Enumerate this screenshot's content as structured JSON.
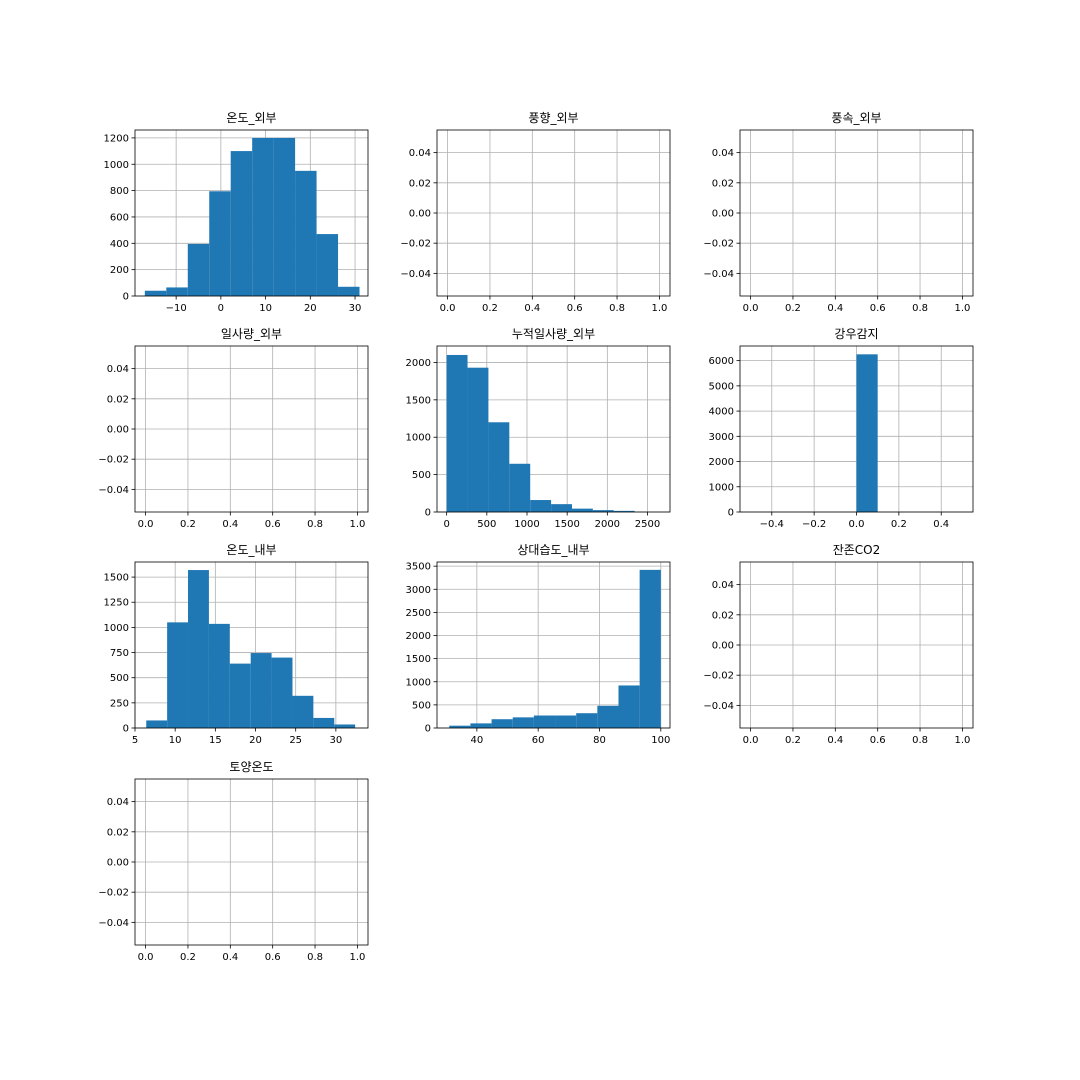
{
  "colors": {
    "bar": "#1f77b4",
    "grid": "#b0b0b0",
    "axes": "#000000",
    "background": "#ffffff"
  },
  "chart_data": [
    {
      "type": "bar",
      "title": "온도_외부",
      "grid": true,
      "xlim": [
        -19.2,
        32.9
      ],
      "ylim": [
        0,
        1260
      ],
      "bins": [
        [
          -17.0,
          -12.2,
          40
        ],
        [
          -12.2,
          -7.4,
          65
        ],
        [
          -7.4,
          -2.6,
          395
        ],
        [
          -2.6,
          2.2,
          795
        ],
        [
          2.2,
          7.0,
          1100
        ],
        [
          7.0,
          11.8,
          1200
        ],
        [
          11.8,
          16.6,
          1200
        ],
        [
          16.6,
          21.4,
          950
        ],
        [
          21.4,
          26.2,
          470
        ],
        [
          26.2,
          31.0,
          70
        ]
      ],
      "xticks": [
        -10,
        0,
        10,
        20,
        30
      ],
      "xtick_labels": [
        "−10",
        "0",
        "10",
        "20",
        "30"
      ],
      "yticks": [
        0,
        200,
        400,
        600,
        800,
        1000,
        1200
      ],
      "ytick_labels": [
        "0",
        "200",
        "400",
        "600",
        "800",
        "1000",
        "1200"
      ]
    },
    {
      "type": "bar",
      "title": "풍향_외부",
      "grid": true,
      "xlim": [
        -0.05,
        1.05
      ],
      "ylim": [
        -0.055,
        0.055
      ],
      "bins": [],
      "xticks": [
        0,
        0.2,
        0.4,
        0.6,
        0.8,
        1.0
      ],
      "xtick_labels": [
        "0.0",
        "0.2",
        "0.4",
        "0.6",
        "0.8",
        "1.0"
      ],
      "yticks": [
        -0.04,
        -0.02,
        0,
        0.02,
        0.04
      ],
      "ytick_labels": [
        "−0.04",
        "−0.02",
        "0.00",
        "0.02",
        "0.04"
      ]
    },
    {
      "type": "bar",
      "title": "풍속_외부",
      "grid": true,
      "xlim": [
        -0.05,
        1.05
      ],
      "ylim": [
        -0.055,
        0.055
      ],
      "bins": [],
      "xticks": [
        0,
        0.2,
        0.4,
        0.6,
        0.8,
        1.0
      ],
      "xtick_labels": [
        "0.0",
        "0.2",
        "0.4",
        "0.6",
        "0.8",
        "1.0"
      ],
      "yticks": [
        -0.04,
        -0.02,
        0,
        0.02,
        0.04
      ],
      "ytick_labels": [
        "−0.04",
        "−0.02",
        "0.00",
        "0.02",
        "0.04"
      ]
    },
    {
      "type": "bar",
      "title": "일사량_외부",
      "grid": true,
      "xlim": [
        -0.05,
        1.05
      ],
      "ylim": [
        -0.055,
        0.055
      ],
      "bins": [],
      "xticks": [
        0,
        0.2,
        0.4,
        0.6,
        0.8,
        1.0
      ],
      "xtick_labels": [
        "0.0",
        "0.2",
        "0.4",
        "0.6",
        "0.8",
        "1.0"
      ],
      "yticks": [
        -0.04,
        -0.02,
        0,
        0.02,
        0.04
      ],
      "ytick_labels": [
        "−0.04",
        "−0.02",
        "0.00",
        "0.02",
        "0.04"
      ]
    },
    {
      "type": "bar",
      "title": "누적일사량_외부",
      "grid": true,
      "xlim": [
        -120,
        2780
      ],
      "ylim": [
        0,
        2220
      ],
      "bins": [
        [
          0,
          260,
          2100
        ],
        [
          260,
          520,
          1930
        ],
        [
          520,
          780,
          1200
        ],
        [
          780,
          1040,
          645
        ],
        [
          1040,
          1300,
          160
        ],
        [
          1300,
          1560,
          105
        ],
        [
          1560,
          1820,
          45
        ],
        [
          1820,
          2080,
          25
        ],
        [
          2080,
          2340,
          15
        ],
        [
          2340,
          2600,
          0
        ]
      ],
      "xticks": [
        0,
        500,
        1000,
        1500,
        2000,
        2500
      ],
      "xtick_labels": [
        "0",
        "500",
        "1000",
        "1500",
        "2000",
        "2500"
      ],
      "yticks": [
        0,
        500,
        1000,
        1500,
        2000
      ],
      "ytick_labels": [
        "0",
        "500",
        "1000",
        "1500",
        "2000"
      ]
    },
    {
      "type": "bar",
      "title": "강우감지",
      "grid": true,
      "xlim": [
        -0.55,
        0.55
      ],
      "ylim": [
        0,
        6580
      ],
      "bins": [
        [
          0.0,
          0.1,
          6250
        ]
      ],
      "xticks": [
        -0.4,
        -0.2,
        0,
        0.2,
        0.4
      ],
      "xtick_labels": [
        "−0.4",
        "−0.2",
        "0.0",
        "0.2",
        "0.4"
      ],
      "yticks": [
        0,
        1000,
        2000,
        3000,
        4000,
        5000,
        6000
      ],
      "ytick_labels": [
        "0",
        "1000",
        "2000",
        "3000",
        "4000",
        "5000",
        "6000"
      ]
    },
    {
      "type": "bar",
      "title": "온도_내부",
      "grid": true,
      "xlim": [
        5,
        34
      ],
      "ylim": [
        0,
        1650
      ],
      "bins": [
        [
          6.4,
          9.0,
          75
        ],
        [
          9.0,
          11.6,
          1050
        ],
        [
          11.6,
          14.2,
          1570
        ],
        [
          14.2,
          16.8,
          1035
        ],
        [
          16.8,
          19.4,
          640
        ],
        [
          19.4,
          22.0,
          745
        ],
        [
          22.0,
          24.6,
          700
        ],
        [
          24.6,
          27.2,
          320
        ],
        [
          27.2,
          29.8,
          100
        ],
        [
          29.8,
          32.4,
          35
        ]
      ],
      "xticks": [
        5,
        10,
        15,
        20,
        25,
        30
      ],
      "xtick_labels": [
        "5",
        "10",
        "15",
        "20",
        "25",
        "30"
      ],
      "yticks": [
        0,
        250,
        500,
        750,
        1000,
        1250,
        1500
      ],
      "ytick_labels": [
        "0",
        "250",
        "500",
        "750",
        "1000",
        "1250",
        "1500"
      ]
    },
    {
      "type": "bar",
      "title": "상대습도_내부",
      "grid": true,
      "xlim": [
        27,
        103
      ],
      "ylim": [
        0,
        3590
      ],
      "bins": [
        [
          31.0,
          37.9,
          50
        ],
        [
          37.9,
          44.8,
          100
        ],
        [
          44.8,
          51.7,
          190
        ],
        [
          51.7,
          58.6,
          230
        ],
        [
          58.6,
          65.5,
          270
        ],
        [
          65.5,
          72.4,
          270
        ],
        [
          72.4,
          79.3,
          320
        ],
        [
          79.3,
          86.2,
          480
        ],
        [
          86.2,
          93.1,
          920
        ],
        [
          93.1,
          100.0,
          3420
        ]
      ],
      "xticks": [
        40,
        60,
        80,
        100
      ],
      "xtick_labels": [
        "40",
        "60",
        "80",
        "100"
      ],
      "yticks": [
        0,
        500,
        1000,
        1500,
        2000,
        2500,
        3000,
        3500
      ],
      "ytick_labels": [
        "0",
        "500",
        "1000",
        "1500",
        "2000",
        "2500",
        "3000",
        "3500"
      ]
    },
    {
      "type": "bar",
      "title": "잔존CO2",
      "grid": true,
      "xlim": [
        -0.05,
        1.05
      ],
      "ylim": [
        -0.055,
        0.055
      ],
      "bins": [],
      "xticks": [
        0,
        0.2,
        0.4,
        0.6,
        0.8,
        1.0
      ],
      "xtick_labels": [
        "0.0",
        "0.2",
        "0.4",
        "0.6",
        "0.8",
        "1.0"
      ],
      "yticks": [
        -0.04,
        -0.02,
        0,
        0.02,
        0.04
      ],
      "ytick_labels": [
        "−0.04",
        "−0.02",
        "0.00",
        "0.02",
        "0.04"
      ]
    },
    {
      "type": "bar",
      "title": "토양온도",
      "grid": true,
      "xlim": [
        -0.05,
        1.05
      ],
      "ylim": [
        -0.055,
        0.055
      ],
      "bins": [],
      "xticks": [
        0,
        0.2,
        0.4,
        0.6,
        0.8,
        1.0
      ],
      "xtick_labels": [
        "0.0",
        "0.2",
        "0.4",
        "0.6",
        "0.8",
        "1.0"
      ],
      "yticks": [
        -0.04,
        -0.02,
        0,
        0.02,
        0.04
      ],
      "ytick_labels": [
        "−0.04",
        "−0.02",
        "0.00",
        "0.02",
        "0.04"
      ]
    }
  ]
}
